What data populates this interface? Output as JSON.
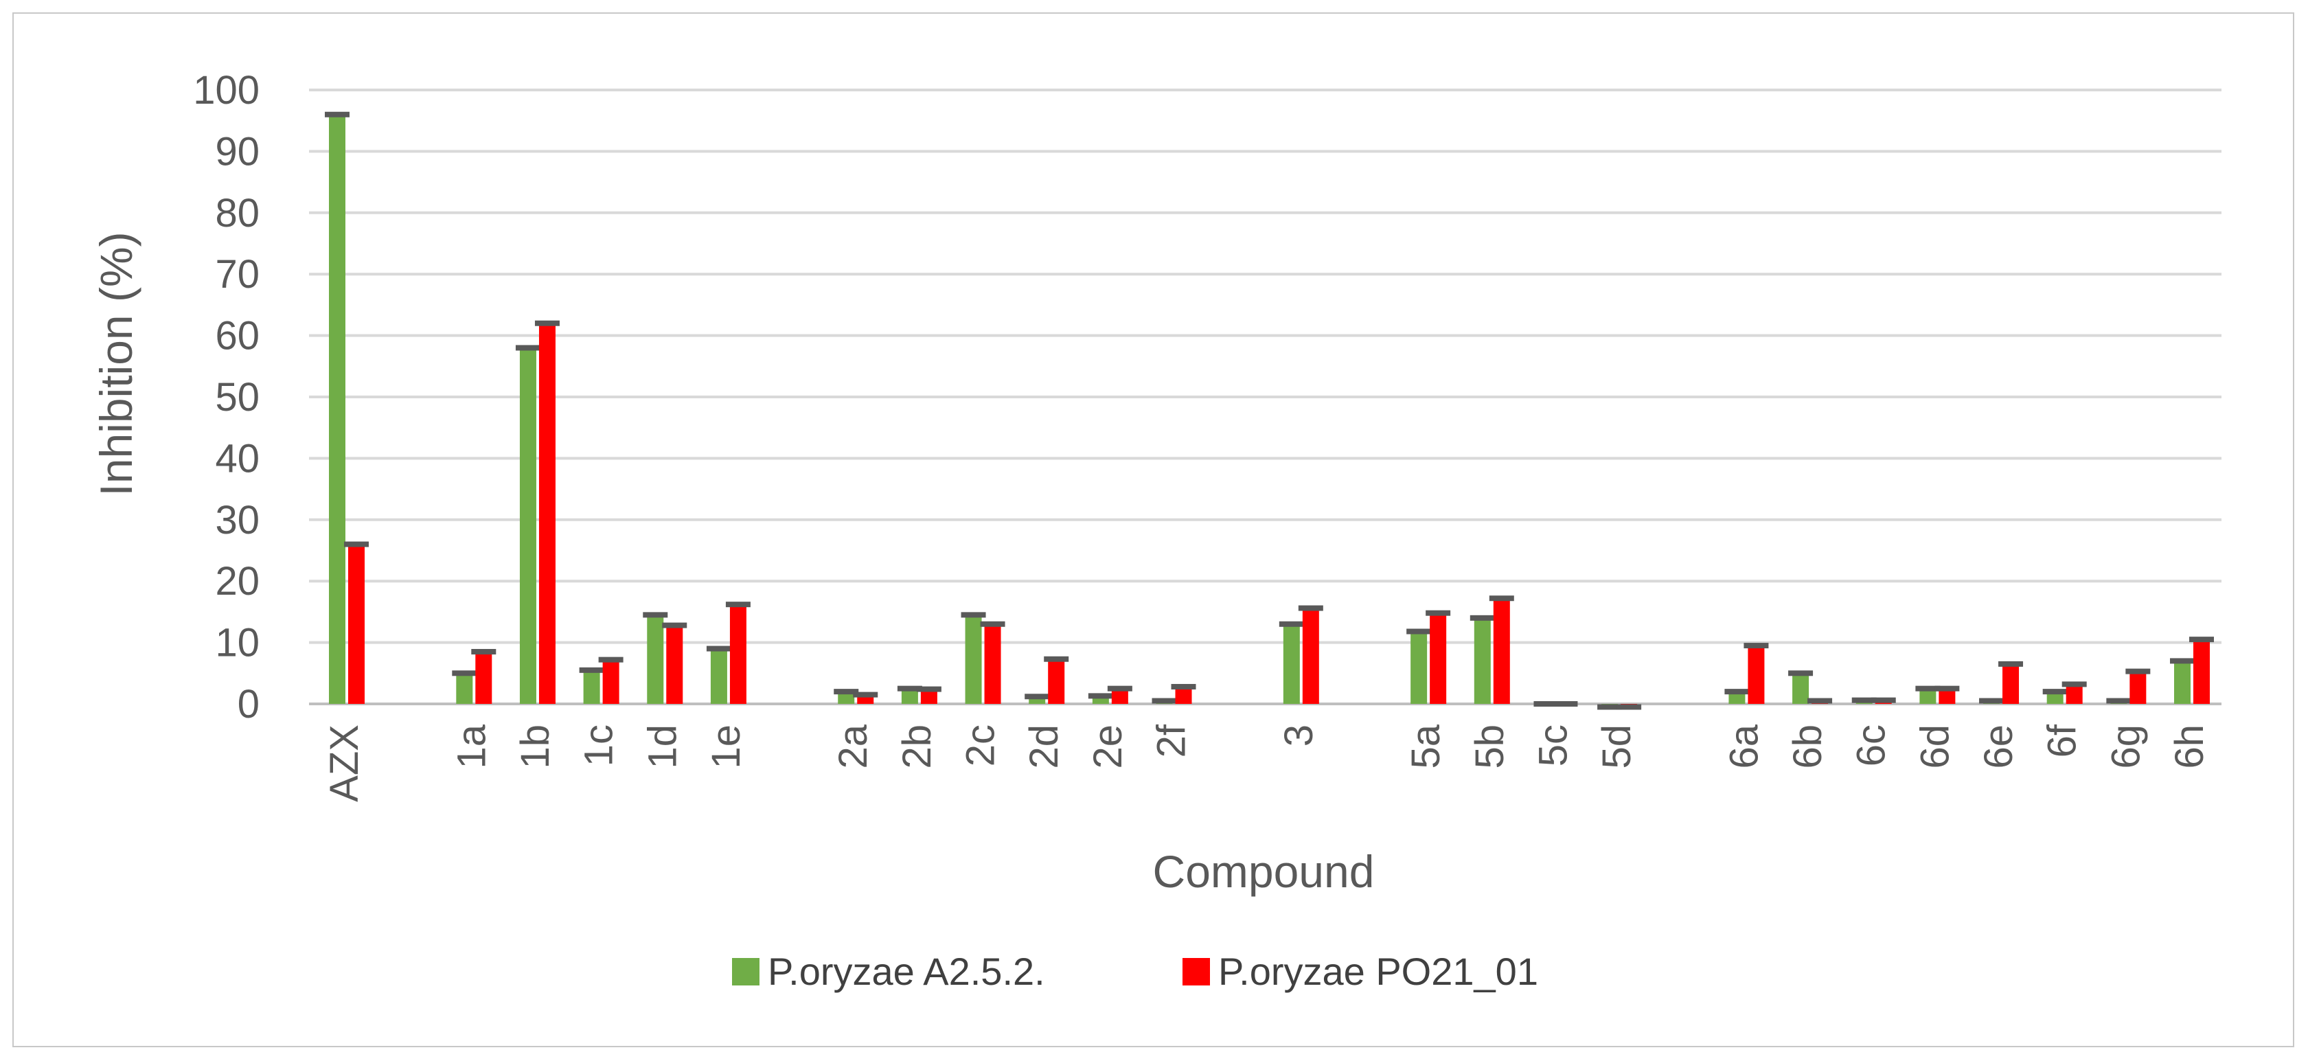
{
  "chart_data": {
    "type": "bar",
    "xlabel": "Compound",
    "ylabel": "Inhibition (%)",
    "ylim": [
      0,
      100
    ],
    "yticks": [
      0,
      10,
      20,
      30,
      40,
      50,
      60,
      70,
      80,
      90,
      100
    ],
    "grid": true,
    "legend_position": "bottom",
    "error_bars": true,
    "categories": [
      "AZX",
      "",
      "1a",
      "1b",
      "1c",
      "1d",
      "1e",
      "",
      "2a",
      "2b",
      "2c",
      "2d",
      "2e",
      "2f",
      "",
      "3",
      "",
      "5a",
      "5b",
      "5c",
      "5d",
      "",
      "6a",
      "6b",
      "6c",
      "6d",
      "6e",
      "6f",
      "6g",
      "6h"
    ],
    "series": [
      {
        "name": "P.oryzae A2.5.2.",
        "color": "#70ad47",
        "values": [
          96,
          null,
          5,
          58,
          5.5,
          14.5,
          9,
          null,
          2,
          2.5,
          14.5,
          1.2,
          1.3,
          0.5,
          null,
          13,
          null,
          11.8,
          14,
          0,
          -0.5,
          null,
          2,
          5,
          0.6,
          2.5,
          0.5,
          2,
          0.5,
          7
        ]
      },
      {
        "name": "P.oryzae PO21_01",
        "color": "#ff0000",
        "values": [
          26,
          null,
          8.5,
          62,
          7.2,
          12.8,
          16.2,
          null,
          1.5,
          2.4,
          13,
          7.3,
          2.5,
          2.8,
          null,
          15.6,
          null,
          14.8,
          17.2,
          0,
          -0.5,
          null,
          9.5,
          0.5,
          0.6,
          2.5,
          6.5,
          3.2,
          5.3,
          10.5
        ]
      }
    ]
  },
  "colors": {
    "grid": "#d9d9d9",
    "axis": "#bfbfbf",
    "error_cap": "#595959",
    "text": "#595959"
  }
}
